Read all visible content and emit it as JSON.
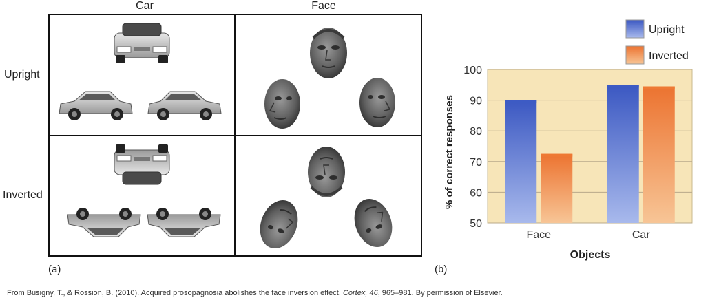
{
  "panel_a": {
    "col_labels": [
      "Car",
      "Face"
    ],
    "row_labels": [
      "Upright",
      "Inverted"
    ],
    "tag": "(a)"
  },
  "panel_b": {
    "tag": "(b)"
  },
  "caption": {
    "before": "From Busigny, T., & Rossion, B. (2010). Acquired prosopagnosia abolishes the face inversion effect. ",
    "journal": "Cortex, 46",
    "after": ", 965–981. By permission of Elsevier."
  },
  "colors": {
    "upright": "#3d5bc4",
    "inverted": "#ee7a34",
    "plot_bg": "#f7e5b8"
  },
  "chart_data": {
    "type": "bar",
    "categories": [
      "Face",
      "Car"
    ],
    "series": [
      {
        "name": "Upright",
        "values": [
          90,
          95
        ]
      },
      {
        "name": "Inverted",
        "values": [
          72.5,
          94.5
        ]
      }
    ],
    "xlabel": "Objects",
    "ylabel": "% of correct responses",
    "ylim": [
      50,
      100
    ],
    "yticks": [
      50,
      60,
      70,
      80,
      90,
      100
    ],
    "legend_position": "top-right",
    "grid": true
  }
}
